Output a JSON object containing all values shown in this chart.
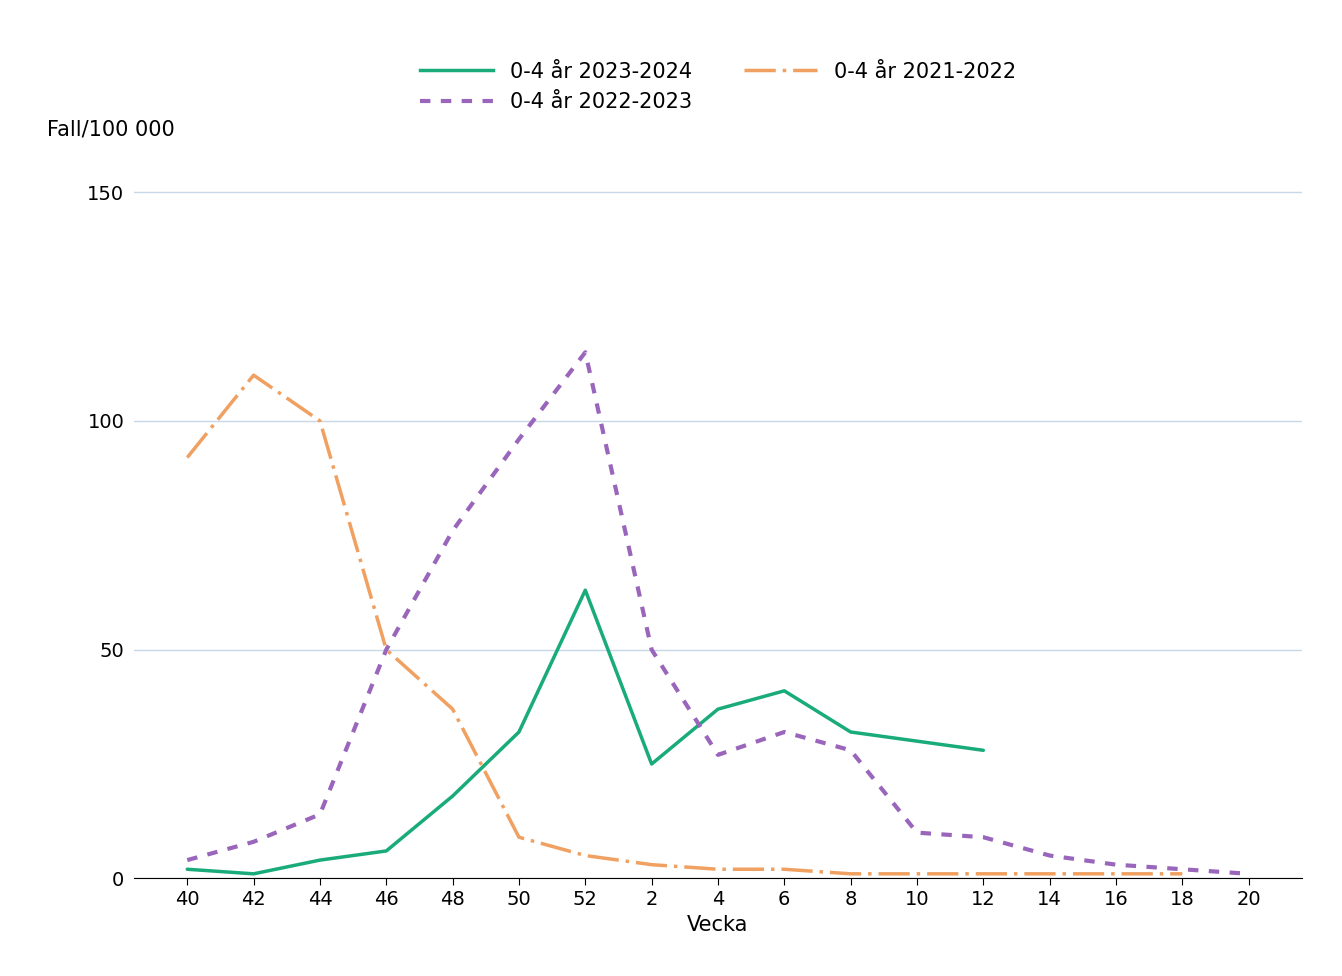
{
  "ylabel": "Fall/100 000",
  "xlabel": "Vecka",
  "ylim": [
    0,
    160
  ],
  "yticks": [
    0,
    50,
    100,
    150
  ],
  "xtick_labels": [
    "40",
    "42",
    "44",
    "46",
    "48",
    "50",
    "52",
    "2",
    "4",
    "6",
    "8",
    "10",
    "12",
    "14",
    "16",
    "18",
    "20"
  ],
  "x_positions": [
    0,
    1,
    2,
    3,
    4,
    5,
    6,
    7,
    8,
    9,
    10,
    11,
    12,
    13,
    14,
    15,
    16
  ],
  "series_2023_2024": {
    "label": "0-4 år 2023-2024",
    "color": "#1aab7a",
    "linestyle": "solid",
    "linewidth": 2.5,
    "values": [
      2,
      1,
      4,
      6,
      18,
      32,
      63,
      25,
      37,
      41,
      32,
      30,
      28,
      null,
      null,
      null,
      null
    ]
  },
  "series_2022_2023": {
    "label": "0-4 år 2022-2023",
    "color": "#9966bb",
    "linestyle": "dotted",
    "linewidth": 3.0,
    "values": [
      4,
      8,
      14,
      50,
      76,
      96,
      115,
      50,
      27,
      32,
      28,
      10,
      9,
      5,
      3,
      2,
      1
    ]
  },
  "series_2021_2022": {
    "label": "0-4 år 2021-2022",
    "color": "#f0a060",
    "linestyle": "dashdot",
    "linewidth": 2.5,
    "values": [
      92,
      110,
      100,
      50,
      37,
      9,
      5,
      3,
      2,
      2,
      1,
      1,
      1,
      1,
      1,
      1,
      null
    ]
  },
  "background_color": "#ffffff",
  "grid_color": "#c8d8e8",
  "legend_fontsize": 15,
  "axis_fontsize": 15,
  "tick_fontsize": 14
}
